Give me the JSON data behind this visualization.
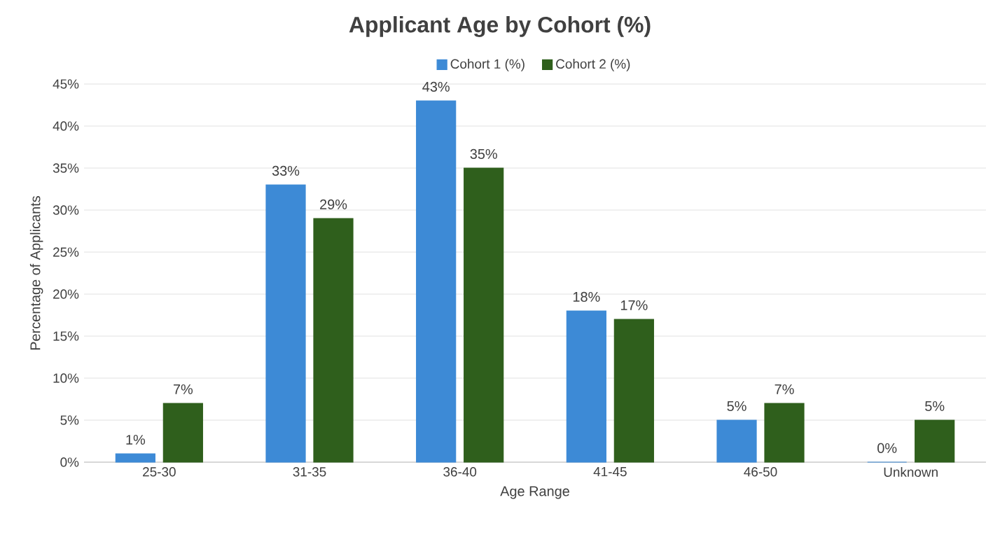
{
  "chart_data": {
    "type": "bar",
    "title": "Applicant Age by Cohort (%)",
    "xlabel": "Age Range",
    "ylabel": "Percentage of Applicants",
    "categories": [
      "25-30",
      "31-35",
      "36-40",
      "41-45",
      "46-50",
      "Unknown"
    ],
    "series": [
      {
        "name": "Cohort 1 (%)",
        "color": "#3d8ad6",
        "values": [
          1,
          33,
          43,
          18,
          5,
          0
        ],
        "value_labels": [
          "1%",
          "33%",
          "43%",
          "18%",
          "5%",
          "0%"
        ]
      },
      {
        "name": "Cohort 2 (%)",
        "color": "#2f5f1c",
        "values": [
          7,
          29,
          35,
          17,
          7,
          5
        ],
        "value_labels": [
          "7%",
          "29%",
          "35%",
          "17%",
          "7%",
          "5%"
        ]
      }
    ],
    "ylim": [
      0,
      45
    ],
    "yticks": [
      {
        "value": 0,
        "label": "0%"
      },
      {
        "value": 5,
        "label": "5%"
      },
      {
        "value": 10,
        "label": "10%"
      },
      {
        "value": 15,
        "label": "15%"
      },
      {
        "value": 20,
        "label": "20%"
      },
      {
        "value": 25,
        "label": "25%"
      },
      {
        "value": 30,
        "label": "30%"
      },
      {
        "value": 35,
        "label": "35%"
      },
      {
        "value": 40,
        "label": "40%"
      },
      {
        "value": 45,
        "label": "45%"
      }
    ],
    "grid": "y",
    "legend": "top"
  }
}
